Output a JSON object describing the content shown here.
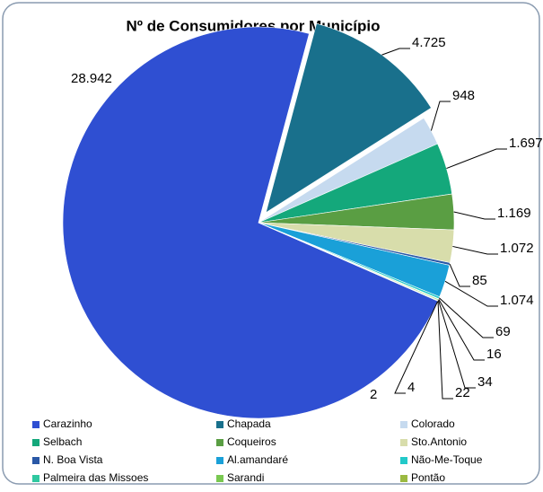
{
  "chart_data": {
    "type": "pie",
    "title": "Nº de Consumidores por Município",
    "categories": [
      "Carazinho",
      "Chapada",
      "Colorado",
      "Selbach",
      "Coqueiros",
      "Sto.Antonio",
      "N. Boa Vista",
      "Al.amandaré",
      "Não-Me-Toque",
      "Palmeira das Missoes",
      "Sarandi",
      "Pontão",
      null,
      null
    ],
    "values": [
      28942,
      4725,
      948,
      1697,
      1169,
      1072,
      85,
      1074,
      69,
      16,
      34,
      22,
      4,
      2
    ],
    "value_labels": [
      "28.942",
      "4.725",
      "948",
      "1.697",
      "1.169",
      "1.072",
      "85",
      "1.074",
      "69",
      "16",
      "34",
      "22",
      "4",
      "2"
    ],
    "colors": [
      "#2f4fd2",
      "#19708c",
      "#c6daef",
      "#14a87b",
      "#5a9e43",
      "#d8ddab",
      "#2a58a6",
      "#1aa0d8",
      "#22c9c9",
      "#2fc8a0",
      "#79c851",
      "#9bb941",
      "#8a8a8a",
      "#a5a5a5"
    ],
    "exploded": [
      "Chapada"
    ],
    "legend": "bottom"
  }
}
